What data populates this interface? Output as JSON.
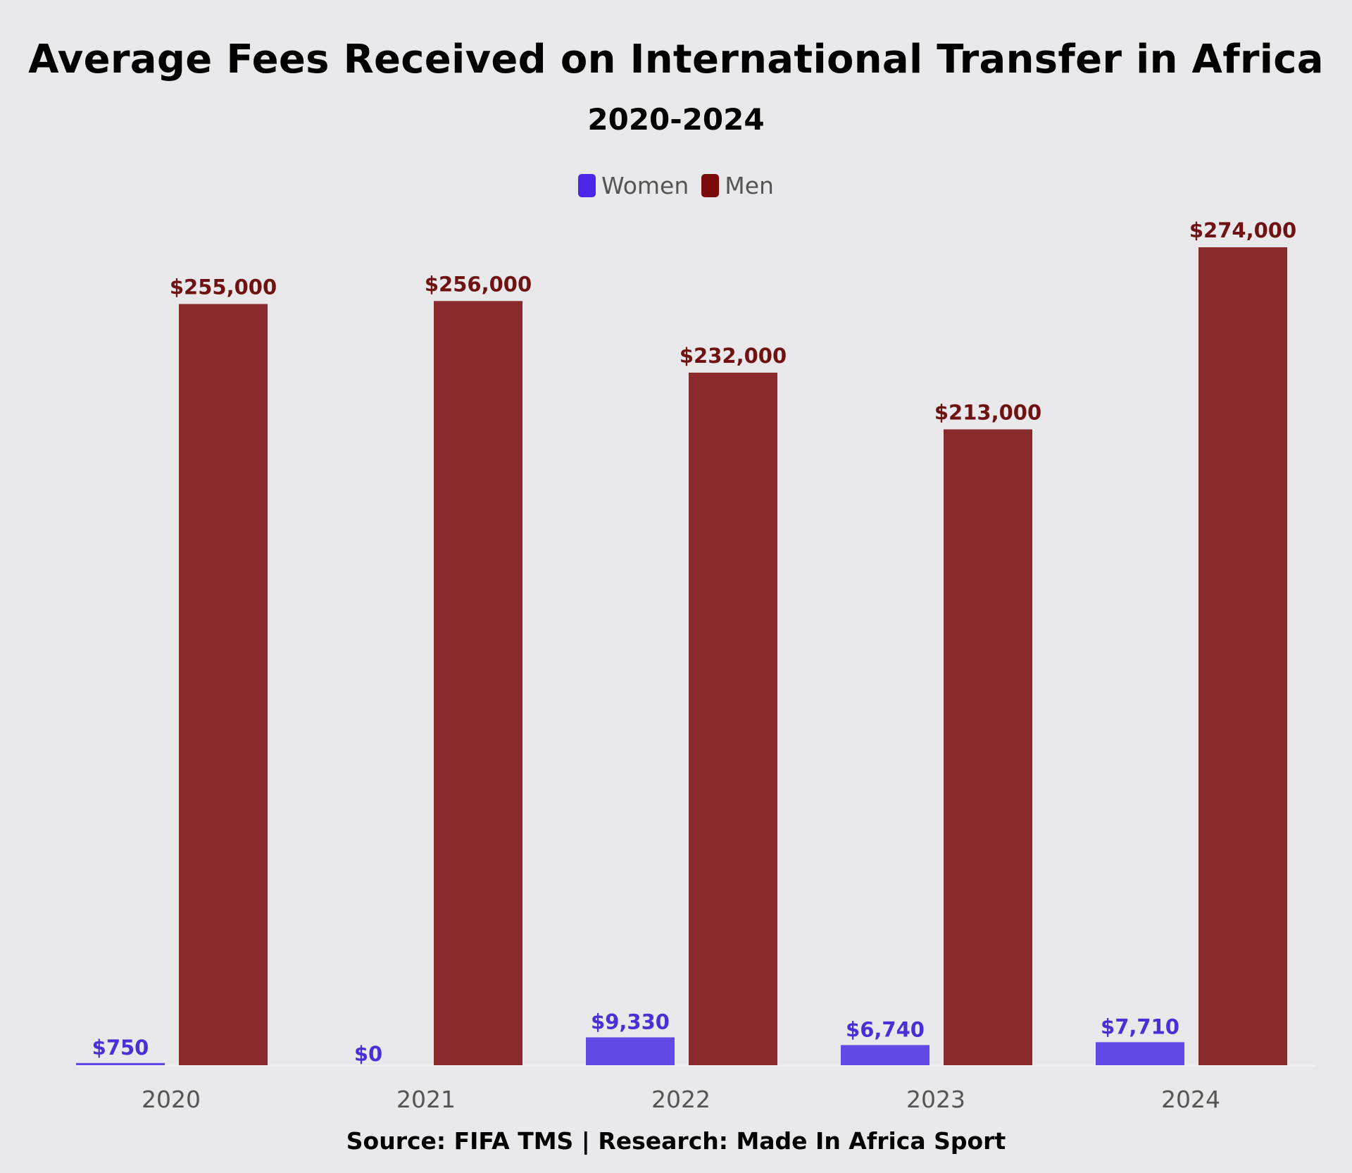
{
  "title": "Average Fees Received on International Transfer in Africa",
  "subtitle": "2020-2024",
  "source": "Source: FIFA TMS | Research: Made In Africa Sport",
  "colors": {
    "women": "#6149e5",
    "men": "#8b2a2d",
    "women_legend": "#4a26e8",
    "men_legend": "#7a0a0a",
    "women_label": "#4a2fd6",
    "men_label": "#6e1212",
    "background": "#e9e8ea"
  },
  "legend": [
    {
      "name": "Women",
      "color_key": "women_legend"
    },
    {
      "name": "Men",
      "color_key": "men_legend"
    }
  ],
  "chart_data": {
    "type": "bar",
    "categories": [
      "2020",
      "2021",
      "2022",
      "2023",
      "2024"
    ],
    "series": [
      {
        "name": "Women",
        "values": [
          750,
          0,
          9330,
          6740,
          7710
        ],
        "labels": [
          "$750",
          "$0",
          "$9,330",
          "$6,740",
          "$7,710"
        ]
      },
      {
        "name": "Men",
        "values": [
          255000,
          256000,
          232000,
          213000,
          274000
        ],
        "labels": [
          "$255,000",
          "$256,000",
          "$232,000",
          "$213,000",
          "$274,000"
        ]
      }
    ],
    "title": "Average Fees Received on International Transfer in Africa",
    "subtitle": "2020-2024",
    "xlabel": "",
    "ylabel": "",
    "ylim": [
      0,
      274000
    ],
    "grid": false,
    "legend_position": "top-center"
  }
}
